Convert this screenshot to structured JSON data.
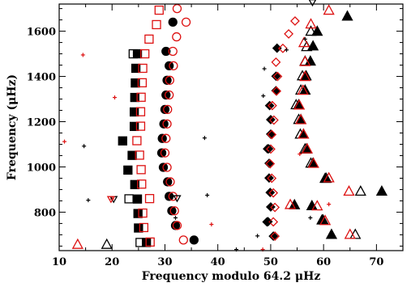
{
  "chart_data": {
    "type": "scatter",
    "title": "",
    "xlabel": "Frequency modulo 64.2 μHz",
    "ylabel": "Frequency (μHz)",
    "xlim": [
      10,
      75
    ],
    "ylim": [
      630,
      1720
    ],
    "x_ticks": [
      10,
      20,
      30,
      40,
      50,
      60,
      70
    ],
    "y_ticks": [
      800,
      1000,
      1200,
      1400,
      1600
    ],
    "x_tick_labels": [
      "10",
      "20",
      "30",
      "40",
      "50",
      "60",
      "70"
    ],
    "y_tick_labels": [
      "800",
      "1000",
      "1200",
      "1400",
      "1600"
    ],
    "grid": false,
    "legend": "none",
    "colors": {
      "black": "#000000",
      "red": "#dd1111"
    },
    "series": [
      {
        "marker": "square-filled",
        "color": "black",
        "points": [
          [
            24.8,
            1500
          ],
          [
            24.5,
            1436
          ],
          [
            24.4,
            1371
          ],
          [
            24.3,
            1307
          ],
          [
            24.2,
            1243
          ],
          [
            24.2,
            1179
          ],
          [
            22.0,
            1115
          ],
          [
            23.8,
            1051
          ],
          [
            23.0,
            986
          ],
          [
            24.3,
            922
          ],
          [
            24.8,
            858
          ],
          [
            24.9,
            794
          ],
          [
            25.0,
            730
          ],
          [
            26.5,
            666
          ]
        ]
      },
      {
        "marker": "square-open",
        "color": "black",
        "points": [
          [
            24.0,
            1500
          ],
          [
            23.2,
            859
          ],
          [
            25.3,
            666
          ]
        ]
      },
      {
        "marker": "square-open",
        "color": "red",
        "points": [
          [
            28.9,
            1693
          ],
          [
            28.4,
            1629
          ],
          [
            27.0,
            1565
          ],
          [
            26.2,
            1500
          ],
          [
            25.8,
            1436
          ],
          [
            25.7,
            1372
          ],
          [
            25.5,
            1308
          ],
          [
            25.4,
            1244
          ],
          [
            25.4,
            1180
          ],
          [
            24.7,
            1116
          ],
          [
            25.2,
            1052
          ],
          [
            25.5,
            988
          ],
          [
            25.6,
            924
          ],
          [
            27.1,
            860
          ],
          [
            25.8,
            796
          ],
          [
            26.0,
            732
          ],
          [
            27.2,
            668
          ]
        ]
      },
      {
        "marker": "circle-filled",
        "color": "black",
        "points": [
          [
            31.5,
            1640
          ],
          [
            30.2,
            1511
          ],
          [
            30.8,
            1447
          ],
          [
            30.4,
            1383
          ],
          [
            30.2,
            1318
          ],
          [
            30.0,
            1254
          ],
          [
            29.8,
            1190
          ],
          [
            29.5,
            1126
          ],
          [
            29.4,
            1062
          ],
          [
            29.7,
            998
          ],
          [
            30.5,
            934
          ],
          [
            30.8,
            870
          ],
          [
            31.3,
            806
          ],
          [
            32.0,
            741
          ],
          [
            35.5,
            677
          ]
        ]
      },
      {
        "marker": "circle-open",
        "color": "red",
        "points": [
          [
            32.3,
            1700
          ],
          [
            34.0,
            1640
          ],
          [
            32.2,
            1575
          ],
          [
            31.5,
            1511
          ],
          [
            31.6,
            1447
          ],
          [
            30.9,
            1383
          ],
          [
            30.8,
            1318
          ],
          [
            30.5,
            1254
          ],
          [
            30.4,
            1190
          ],
          [
            30.2,
            1126
          ],
          [
            30.0,
            1062
          ],
          [
            30.4,
            998
          ],
          [
            31.0,
            934
          ],
          [
            31.5,
            870
          ],
          [
            31.8,
            806
          ],
          [
            32.3,
            741
          ],
          [
            33.5,
            677
          ]
        ]
      },
      {
        "marker": "triangle-filled",
        "color": "black",
        "points": [
          [
            64.5,
            1667
          ],
          [
            58.8,
            1600
          ],
          [
            58.0,
            1535
          ],
          [
            57.5,
            1468
          ],
          [
            56.7,
            1403
          ],
          [
            56.5,
            1340
          ],
          [
            55.3,
            1275
          ],
          [
            55.7,
            1210
          ],
          [
            56.2,
            1145
          ],
          [
            56.8,
            1080
          ],
          [
            58.0,
            1017
          ],
          [
            60.3,
            950
          ],
          [
            71.0,
            893
          ],
          [
            54.5,
            833
          ],
          [
            57.8,
            829
          ],
          [
            59.9,
            766
          ],
          [
            61.5,
            702
          ]
        ]
      },
      {
        "marker": "triangle-open",
        "color": "black",
        "points": [
          [
            57.6,
            1600
          ],
          [
            56.8,
            1532
          ],
          [
            56.5,
            1468
          ],
          [
            56.0,
            1403
          ],
          [
            55.7,
            1340
          ],
          [
            54.8,
            1275
          ],
          [
            55.3,
            1210
          ],
          [
            55.6,
            1145
          ],
          [
            56.5,
            1080
          ],
          [
            57.6,
            1017
          ],
          [
            60.5,
            950
          ],
          [
            67.0,
            893
          ],
          [
            59.7,
            766
          ],
          [
            66.0,
            702
          ],
          [
            19.0,
            658
          ]
        ]
      },
      {
        "marker": "triangle-open",
        "color": "red",
        "points": [
          [
            61.0,
            1693
          ],
          [
            57.6,
            1632
          ],
          [
            56.3,
            1550
          ],
          [
            56.5,
            1466
          ],
          [
            56.5,
            1400
          ],
          [
            56.1,
            1339
          ],
          [
            55.4,
            1274
          ],
          [
            55.7,
            1209
          ],
          [
            56.2,
            1145
          ],
          [
            56.9,
            1080
          ],
          [
            58.1,
            1016
          ],
          [
            61.0,
            952
          ],
          [
            64.8,
            893
          ],
          [
            53.7,
            834
          ],
          [
            58.8,
            828
          ],
          [
            60.3,
            763
          ],
          [
            65.0,
            702
          ],
          [
            13.5,
            658
          ]
        ]
      },
      {
        "marker": "diamond-filled",
        "color": "black",
        "points": [
          [
            51.2,
            1525
          ],
          [
            51.0,
            1401
          ],
          [
            51.0,
            1337
          ],
          [
            49.8,
            1271
          ],
          [
            50.0,
            1209
          ],
          [
            50.0,
            1145
          ],
          [
            49.4,
            1080
          ],
          [
            49.7,
            1016
          ],
          [
            49.7,
            951
          ],
          [
            49.9,
            887
          ],
          [
            50.0,
            823
          ],
          [
            49.5,
            758
          ],
          [
            50.5,
            694
          ]
        ]
      },
      {
        "marker": "diamond-open",
        "color": "red",
        "points": [
          [
            54.6,
            1645
          ],
          [
            53.4,
            1588
          ],
          [
            52.3,
            1524
          ],
          [
            51.0,
            1463
          ],
          [
            51.3,
            1400
          ],
          [
            51.1,
            1335
          ],
          [
            50.3,
            1271
          ],
          [
            50.6,
            1207
          ],
          [
            50.2,
            1143
          ],
          [
            50.0,
            1079
          ],
          [
            49.9,
            1014
          ],
          [
            50.2,
            950
          ],
          [
            50.5,
            885
          ],
          [
            50.8,
            821
          ],
          [
            50.5,
            757
          ],
          [
            50.8,
            694
          ]
        ]
      },
      {
        "marker": "diamond-open",
        "color": "black",
        "points": [
          [
            49.6,
            1080
          ],
          [
            49.3,
            757
          ]
        ]
      },
      {
        "marker": "plus",
        "color": "black",
        "points": [
          [
            56.5,
            1565
          ],
          [
            53.0,
            1517
          ],
          [
            48.8,
            1434
          ],
          [
            48.6,
            1314
          ],
          [
            37.5,
            1128
          ],
          [
            14.7,
            1092
          ],
          [
            38.0,
            875
          ],
          [
            15.5,
            853
          ],
          [
            32.0,
            775
          ],
          [
            57.5,
            775
          ],
          [
            47.5,
            695
          ],
          [
            43.5,
            635
          ]
        ]
      },
      {
        "marker": "plus",
        "color": "red",
        "points": [
          [
            14.5,
            1495
          ],
          [
            20.5,
            1307
          ],
          [
            11.0,
            1112
          ],
          [
            55.5,
            1057
          ],
          [
            20.0,
            858
          ],
          [
            61.0,
            835
          ],
          [
            38.8,
            746
          ],
          [
            48.5,
            635
          ]
        ]
      },
      {
        "marker": "inv-triangle-open",
        "color": "black",
        "points": [
          [
            20.3,
            858
          ],
          [
            32.3,
            862
          ],
          [
            57.9,
            1728
          ]
        ]
      },
      {
        "marker": "inv-triangle-open",
        "color": "red",
        "points": [
          [
            19.8,
            858
          ]
        ]
      }
    ]
  }
}
